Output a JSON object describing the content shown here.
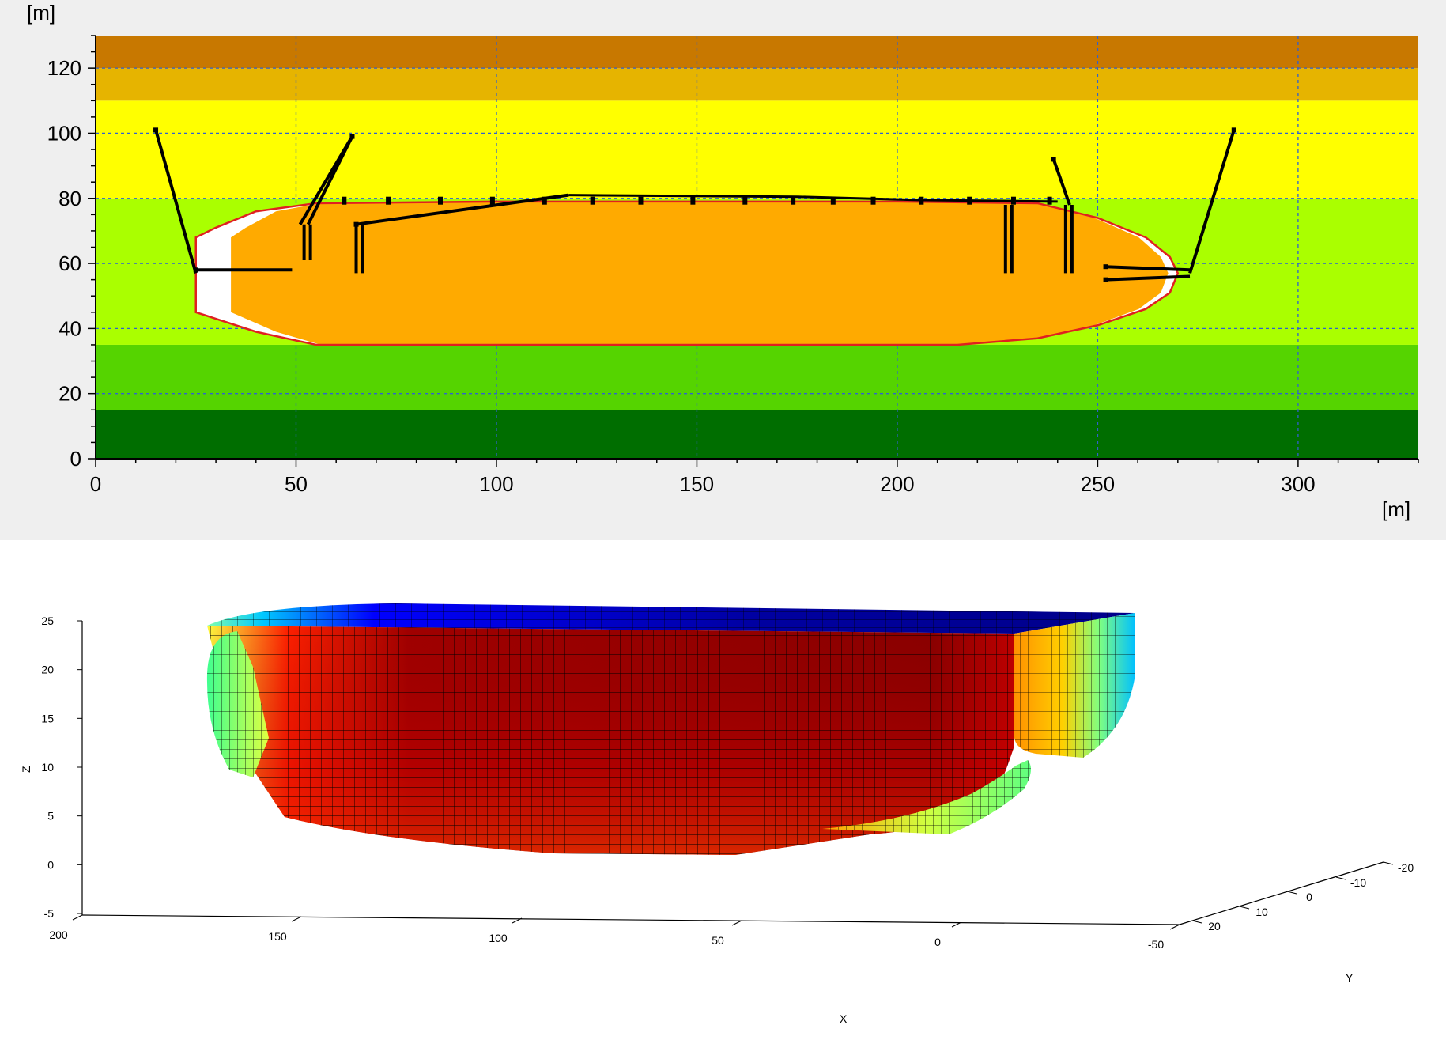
{
  "chart_data": [
    {
      "type": "area",
      "title": "",
      "xlabel": "[m]",
      "ylabel": "[m]",
      "xlim": [
        0,
        330
      ],
      "ylim": [
        0,
        130
      ],
      "x_ticks": [
        "0",
        "50",
        "100",
        "150",
        "200",
        "250",
        "300"
      ],
      "y_ticks": [
        "0",
        "20",
        "40",
        "60",
        "80",
        "100",
        "120"
      ],
      "grid": true,
      "depth_bands": [
        {
          "y0": 0,
          "y1": 15,
          "color": "#006e00"
        },
        {
          "y0": 15,
          "y1": 35,
          "color": "#55d400"
        },
        {
          "y0": 35,
          "y1": 80,
          "color": "#aaff00"
        },
        {
          "y0": 80,
          "y1": 110,
          "color": "#ffff00"
        },
        {
          "y0": 110,
          "y1": 120,
          "color": "#e6b400"
        },
        {
          "y0": 120,
          "y1": 130,
          "color": "#c87800"
        }
      ],
      "hull_outline": {
        "fill": "#ffaa00",
        "stroke": "#e02020",
        "points": [
          [
            25,
            68
          ],
          [
            30,
            71
          ],
          [
            40,
            76
          ],
          [
            55,
            78.5
          ],
          [
            100,
            79
          ],
          [
            200,
            79
          ],
          [
            235,
            78.5
          ],
          [
            250,
            74
          ],
          [
            262,
            68
          ],
          [
            268,
            62
          ],
          [
            270,
            57
          ],
          [
            268,
            51
          ],
          [
            262,
            46
          ],
          [
            250,
            41
          ],
          [
            235,
            37
          ],
          [
            215,
            35
          ],
          [
            100,
            35
          ],
          [
            55,
            35
          ],
          [
            40,
            39
          ],
          [
            30,
            43
          ],
          [
            25,
            45
          ],
          [
            25,
            68
          ]
        ]
      },
      "mooring_lines": [
        {
          "points": [
            [
              15,
              101
            ],
            [
              25,
              57
            ]
          ]
        },
        {
          "points": [
            [
              64,
              99
            ],
            [
              51,
              72
            ]
          ]
        },
        {
          "points": [
            [
              64,
              99
            ],
            [
              53,
              72
            ]
          ]
        },
        {
          "points": [
            [
              65,
              72
            ],
            [
              118,
              81
            ]
          ]
        },
        {
          "points": [
            [
              284,
              101
            ],
            [
              273,
              57
            ]
          ]
        },
        {
          "points": [
            [
              239,
              92
            ],
            [
              243,
              78
            ]
          ]
        },
        {
          "points": [
            [
              25,
              58
            ],
            [
              49,
              58
            ]
          ]
        },
        {
          "points": [
            [
              252,
              59
            ],
            [
              273,
              58
            ]
          ]
        },
        {
          "points": [
            [
              252,
              55
            ],
            [
              273,
              56
            ]
          ]
        }
      ],
      "fenders_x": [
        62,
        73,
        86,
        99,
        112,
        124,
        136,
        149,
        162,
        174,
        184,
        194,
        206,
        218,
        229,
        238
      ]
    },
    {
      "type": "surface",
      "title": "",
      "xlabel": "X",
      "ylabel": "Y",
      "zlabel": "Z",
      "x_ticks": [
        "200",
        "150",
        "100",
        "50",
        "0",
        "-50"
      ],
      "y_ticks": [
        "20",
        "10",
        "0",
        "-10",
        "-20"
      ],
      "z_ticks": [
        "-5",
        "0",
        "5",
        "10",
        "15",
        "20",
        "25"
      ],
      "colormap": [
        "#00007f",
        "#0000ff",
        "#007fff",
        "#00ffff",
        "#7fff7f",
        "#ffff00",
        "#ff7f00",
        "#ff0000",
        "#7f0000"
      ]
    }
  ]
}
